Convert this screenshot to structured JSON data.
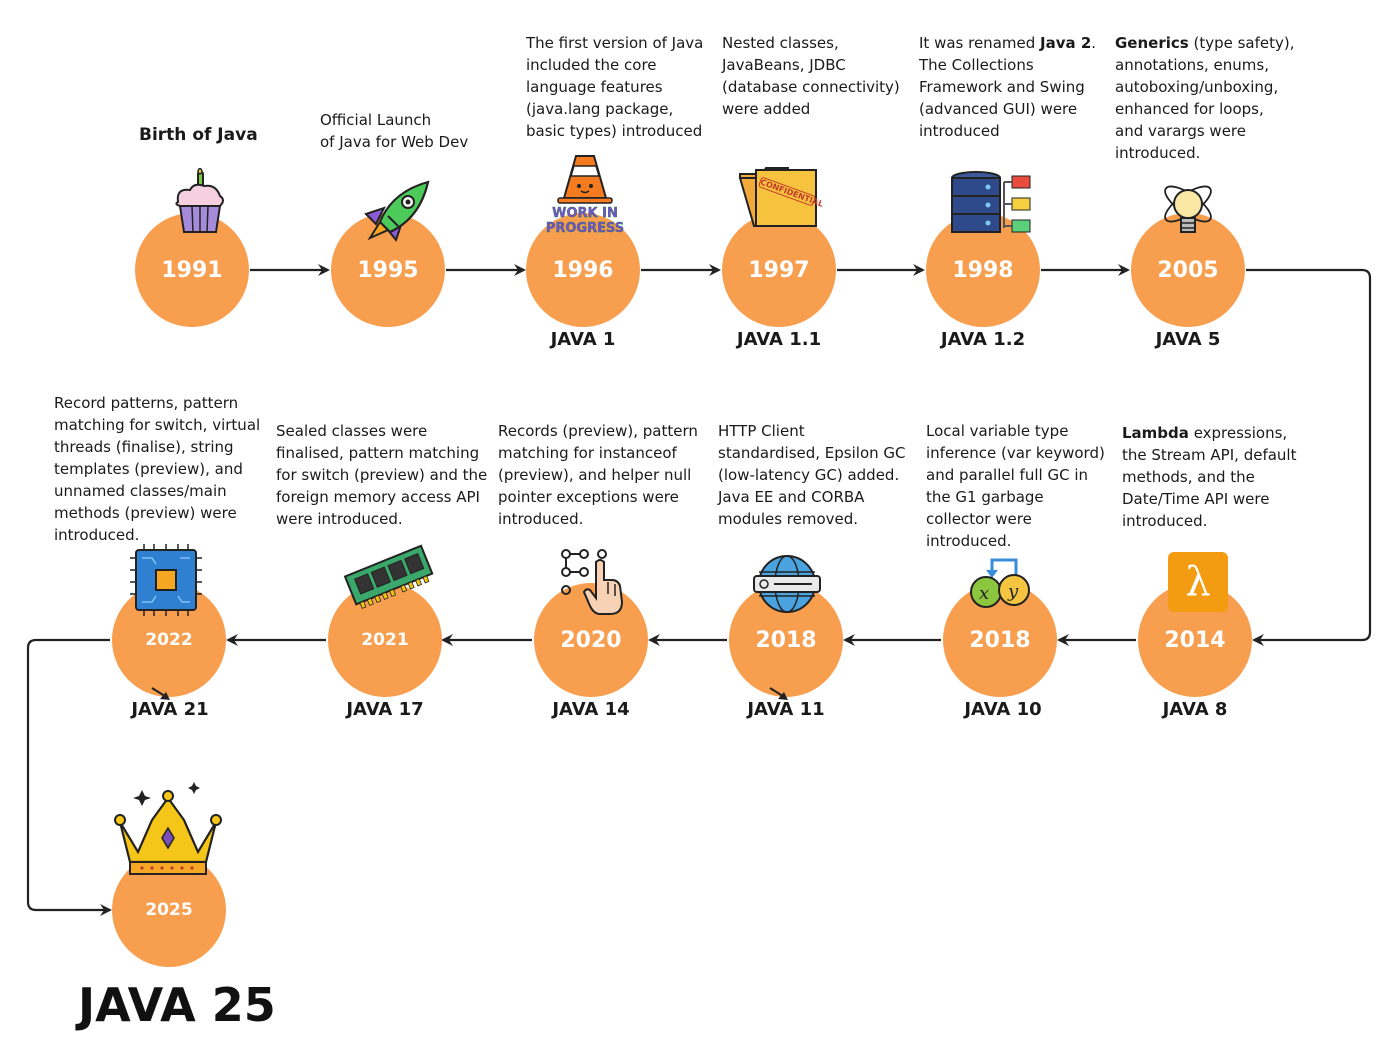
{
  "timeline": [
    {
      "year": "1991",
      "label": "",
      "heading": "Birth of Java",
      "description": "",
      "icon": "cupcake-icon"
    },
    {
      "year": "1995",
      "label": "",
      "heading": "",
      "description": "Official Launch\nof Java for Web Dev",
      "icon": "rocket-icon"
    },
    {
      "year": "1996",
      "label": "JAVA 1",
      "heading": "",
      "description": "The first version of Java\nincluded the core\nlanguage features\n(java.lang package,\nbasic types) introduced",
      "icon": "work-in-progress-icon",
      "icon_text": "WORK IN PROGRESS"
    },
    {
      "year": "1997",
      "label": "JAVA 1.1",
      "heading": "",
      "description": "Nested classes,\nJavaBeans, JDBC\n(database connectivity)\nwere added",
      "icon": "confidential-folder-icon",
      "icon_text": "CONFIDENTIAL"
    },
    {
      "year": "1998",
      "label": "JAVA 1.2",
      "heading": "",
      "description_prefix": "It was renamed ",
      "description_bold": "Java 2",
      "description_rest": ".\nThe Collections\nFramework and Swing\n(advanced GUI) were\nintroduced",
      "icon": "database-server-icon"
    },
    {
      "year": "2005",
      "label": "JAVA 5",
      "heading": "",
      "description_bold": "Generics",
      "description_rest": " (type safety),\nannotations, enums,\nautoboxing/unboxing,\nenhanced for loops,\nand varargs were\nintroduced.",
      "icon": "lightbulb-atom-icon"
    },
    {
      "year": "2014",
      "label": "JAVA 8",
      "heading": "",
      "description_bold": "Lambda",
      "description_rest": " expressions,\nthe Stream API, default\nmethods, and the\nDate/Time API  were\nintroduced.",
      "icon": "lambda-icon",
      "icon_text": "λ"
    },
    {
      "year": "2018",
      "label": "JAVA 10",
      "heading": "",
      "description": "Local variable type\ninference (var keyword)\nand parallel full GC in\nthe G1 garbage\ncollector were\nintroduced.",
      "icon": "variables-xy-icon"
    },
    {
      "year": "2018",
      "label": "JAVA 11",
      "heading": "",
      "description": "HTTP Client\nstandardised, Epsilon GC\n(low-latency GC) added.\nJava EE and CORBA\nmodules removed.",
      "icon": "globe-web-icon"
    },
    {
      "year": "2020",
      "label": "JAVA 14",
      "heading": "",
      "description": "Records (preview), pattern\nmatching for instanceof\n(preview), and helper null\npointer exceptions were\nintroduced.",
      "icon": "touch-pattern-icon"
    },
    {
      "year": "2021",
      "label": "JAVA 17",
      "heading": "",
      "description": "Sealed classes were\nfinalised, pattern matching\nfor switch (preview) and the\nforeign memory access API\nwere introduced.",
      "icon": "memory-ram-icon"
    },
    {
      "year": "2022",
      "label": "JAVA 21",
      "heading": "",
      "description": "Record patterns, pattern\nmatching for switch, virtual\nthreads (finalise), string\ntemplates (preview), and\nunnamed classes/main\nmethods (preview) were\nintroduced.",
      "icon": "cpu-chip-icon"
    },
    {
      "year": "2025",
      "label": "JAVA 25",
      "heading": "",
      "description": "",
      "icon": "crown-icon"
    }
  ],
  "colors": {
    "circle": "#f89e4f",
    "arrow": "#222222",
    "text": "#1a1a1a"
  }
}
